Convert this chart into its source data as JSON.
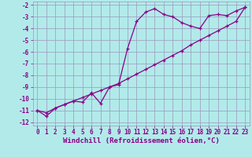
{
  "xlabel": "Windchill (Refroidissement éolien,°C)",
  "bg_color": "#b2eaea",
  "grid_color": "#9999bb",
  "line_color": "#880088",
  "xlim": [
    -0.5,
    23.5
  ],
  "ylim": [
    -12.3,
    -1.7
  ],
  "xticks": [
    0,
    1,
    2,
    3,
    4,
    5,
    6,
    7,
    8,
    9,
    10,
    11,
    12,
    13,
    14,
    15,
    16,
    17,
    18,
    19,
    20,
    21,
    22,
    23
  ],
  "yticks": [
    -12,
    -11,
    -10,
    -9,
    -8,
    -7,
    -6,
    -5,
    -4,
    -3,
    -2
  ],
  "curve1_x": [
    0,
    1,
    2,
    3,
    4,
    5,
    6,
    7,
    8,
    9,
    10,
    11,
    12,
    13,
    14,
    15,
    16,
    17,
    18,
    19,
    20,
    21,
    22,
    23
  ],
  "curve1_y": [
    -11.0,
    -11.5,
    -10.8,
    -10.5,
    -10.2,
    -10.3,
    -9.5,
    -10.4,
    -9.0,
    -8.8,
    -5.7,
    -3.4,
    -2.6,
    -2.3,
    -2.8,
    -3.0,
    -3.5,
    -3.8,
    -4.0,
    -2.9,
    -2.8,
    -2.9,
    -2.5,
    -2.2
  ],
  "curve2_x": [
    0,
    1,
    2,
    3,
    4,
    5,
    6,
    7,
    8,
    9,
    10,
    11,
    12,
    13,
    14,
    15,
    16,
    17,
    18,
    19,
    20,
    21,
    22,
    23
  ],
  "curve2_y": [
    -11.0,
    -11.2,
    -10.8,
    -10.5,
    -10.2,
    -9.9,
    -9.6,
    -9.3,
    -9.0,
    -8.7,
    -8.3,
    -7.9,
    -7.5,
    -7.1,
    -6.7,
    -6.3,
    -5.9,
    -5.4,
    -5.0,
    -4.6,
    -4.2,
    -3.8,
    -3.4,
    -2.2
  ],
  "xlabel_fontsize": 6.5,
  "tick_fontsize": 5.5,
  "line_width": 0.9,
  "marker_size": 3.0
}
